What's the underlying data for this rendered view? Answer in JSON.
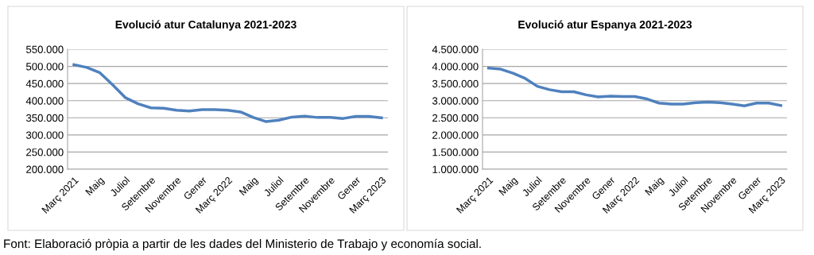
{
  "chart_data": [
    {
      "type": "line",
      "title": "Evolució atur Catalunya 2021-2023",
      "categories": [
        "Març 2021",
        null,
        "Maig",
        null,
        "Juliol",
        null,
        "Setembre",
        null,
        "Novembre",
        null,
        "Gener",
        null,
        "Març 2022",
        null,
        "Maig",
        null,
        "Juliol",
        null,
        "Setembre",
        null,
        "Novembre",
        null,
        "Gener",
        null,
        "Març 2023"
      ],
      "series": [
        {
          "color": "#4f81bd",
          "values": [
            505000,
            497000,
            482000,
            447000,
            409000,
            391000,
            379000,
            378000,
            372000,
            370000,
            374000,
            374000,
            372000,
            367000,
            351000,
            339000,
            343000,
            352000,
            355000,
            351000,
            351000,
            348000,
            354000,
            354000,
            350000
          ]
        }
      ],
      "ylim": [
        200000,
        550000
      ],
      "yticks": [
        {
          "value": 200000,
          "label": "200.000"
        },
        {
          "value": 250000,
          "label": "250.000"
        },
        {
          "value": 300000,
          "label": "300.000"
        },
        {
          "value": 350000,
          "label": "350.000"
        },
        {
          "value": 400000,
          "label": "400.000"
        },
        {
          "value": 450000,
          "label": "450.000"
        },
        {
          "value": 500000,
          "label": "500.000"
        },
        {
          "value": 550000,
          "label": "550.000"
        }
      ],
      "grid": "y",
      "marker": "none",
      "line_style": "solid",
      "annotations": [
        "Font: Elaboració pròpia a partir de les dades del Ministerio de Trabajo y economía social."
      ]
    },
    {
      "type": "line",
      "title": "Evolució atur Espanya 2021-2023",
      "categories": [
        "Març 2021",
        null,
        "Maig",
        null,
        "Juliol",
        null,
        "Setembre",
        null,
        "Novembre",
        null,
        "Gener",
        null,
        "Març 2022",
        null,
        "Maig",
        null,
        "Juliol",
        null,
        "Setembre",
        null,
        "Novembre",
        null,
        "Gener",
        null,
        "Març 2023"
      ],
      "series": [
        {
          "color": "#4f81bd",
          "values": [
            3950000,
            3920000,
            3800000,
            3650000,
            3420000,
            3320000,
            3260000,
            3260000,
            3170000,
            3110000,
            3130000,
            3120000,
            3120000,
            3050000,
            2930000,
            2900000,
            2900000,
            2940000,
            2960000,
            2940000,
            2900000,
            2850000,
            2930000,
            2930000,
            2860000
          ]
        }
      ],
      "ylim": [
        1000000,
        4500000
      ],
      "yticks": [
        {
          "value": 1000000,
          "label": "1.000.000"
        },
        {
          "value": 1500000,
          "label": "1.500.000"
        },
        {
          "value": 2000000,
          "label": "2.000.000"
        },
        {
          "value": 2500000,
          "label": "2.500.000"
        },
        {
          "value": 3000000,
          "label": "3.000.000"
        },
        {
          "value": 3500000,
          "label": "3.500.000"
        },
        {
          "value": 4000000,
          "label": "4.000.000"
        },
        {
          "value": 4500000,
          "label": "4.500.000"
        }
      ],
      "grid": "y",
      "marker": "none",
      "line_style": "solid"
    }
  ]
}
